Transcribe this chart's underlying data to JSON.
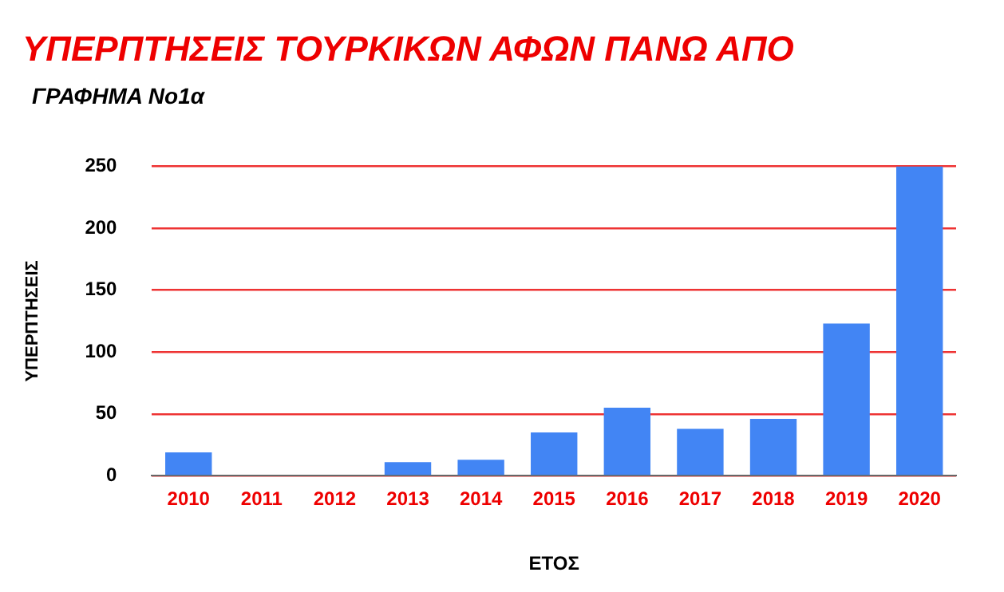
{
  "chart_data": {
    "type": "bar",
    "title": "ΥΠΕΡΠΤΗΣΕΙΣ ΤΟΥΡΚΙΚΩΝ ΑΦΩΝ ΠΑΝΩ ΑΠΟ",
    "subtitle": "ΓΡΑΦΗΜΑ Νο1α",
    "xlabel": "ΕΤΟΣ",
    "ylabel": "ΥΠΕΡΠΤΗΣΕΙΣ",
    "categories": [
      "2010",
      "2011",
      "2012",
      "2013",
      "2014",
      "2015",
      "2016",
      "2017",
      "2018",
      "2019",
      "2020"
    ],
    "values": [
      19,
      0,
      0,
      11,
      13,
      35,
      55,
      38,
      46,
      123,
      250
    ],
    "color": "#4285f4",
    "ylim": [
      0,
      250
    ],
    "yticks": [
      0,
      50,
      100,
      150,
      200,
      250
    ],
    "grid": "y",
    "legend": false
  }
}
